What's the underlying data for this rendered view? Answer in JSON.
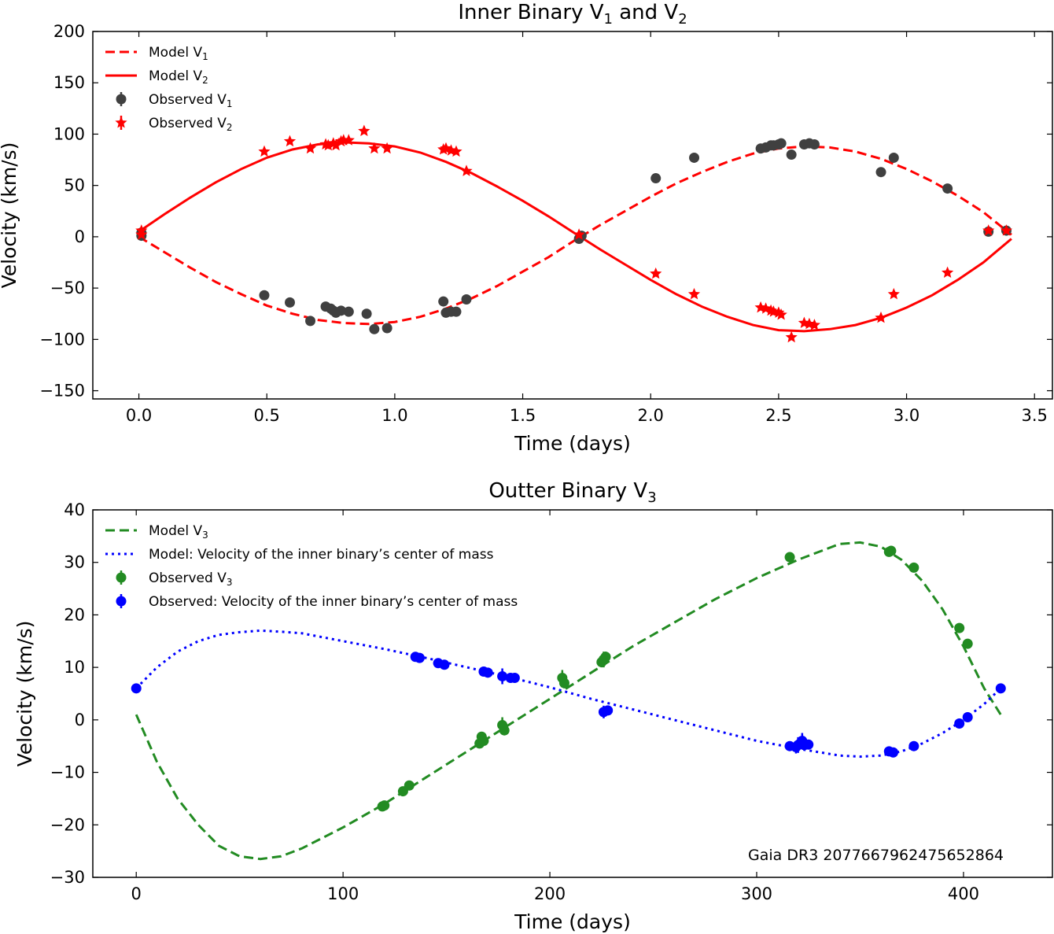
{
  "chart_data": [
    {
      "type": "line",
      "title": "Inner Binary V₁ and V₂",
      "title_parts": [
        "Inner Binary V",
        "1",
        " and V",
        "2"
      ],
      "xlabel": "Time (days)",
      "ylabel": "Velocity (km/s)",
      "xlim": [
        -0.18,
        3.57
      ],
      "ylim": [
        -158,
        200
      ],
      "xticks": [
        0.0,
        0.5,
        1.0,
        1.5,
        2.0,
        2.5,
        3.0,
        3.5
      ],
      "xtick_labels": [
        "0.0",
        "0.5",
        "1.0",
        "1.5",
        "2.0",
        "2.5",
        "3.0",
        "3.5"
      ],
      "yticks": [
        -150,
        -100,
        -50,
        0,
        50,
        100,
        150,
        200
      ],
      "ytick_labels": [
        "−150",
        "−100",
        "−50",
        "0",
        "50",
        "100",
        "150",
        "200"
      ],
      "legend_position": "top-left",
      "legend": [
        {
          "label": "Model V",
          "sub": "1",
          "style": "dashed-line",
          "color": "#ff0000"
        },
        {
          "label": "Model V",
          "sub": "2",
          "style": "solid-line",
          "color": "#ff0000"
        },
        {
          "label": "Observed V",
          "sub": "1",
          "style": "circle",
          "color": "#404040"
        },
        {
          "label": "Observed V",
          "sub": "2",
          "style": "star",
          "color": "#ff0000"
        }
      ],
      "series": [
        {
          "name": "Model V1",
          "style": "dashed",
          "color": "#ff0000",
          "x": [
            0.0,
            0.1,
            0.2,
            0.3,
            0.4,
            0.5,
            0.6,
            0.7,
            0.8,
            0.9,
            1.0,
            1.1,
            1.2,
            1.3,
            1.4,
            1.5,
            1.6,
            1.7,
            1.8,
            1.9,
            2.0,
            2.1,
            2.2,
            2.3,
            2.4,
            2.5,
            2.6,
            2.7,
            2.8,
            2.9,
            3.0,
            3.1,
            3.2,
            3.3,
            3.41
          ],
          "y": [
            0,
            -15,
            -30,
            -44,
            -56,
            -67,
            -75,
            -81,
            -84,
            -85,
            -83,
            -78,
            -70,
            -60,
            -48,
            -34,
            -20,
            -4,
            11,
            25,
            39,
            52,
            63,
            73,
            81,
            86,
            88,
            87,
            83,
            76,
            66,
            54,
            40,
            24,
            2
          ]
        },
        {
          "name": "Model V2",
          "style": "solid",
          "color": "#ff0000",
          "x": [
            0.0,
            0.1,
            0.2,
            0.3,
            0.4,
            0.5,
            0.6,
            0.7,
            0.8,
            0.9,
            1.0,
            1.1,
            1.2,
            1.3,
            1.4,
            1.5,
            1.6,
            1.7,
            1.8,
            1.9,
            2.0,
            2.1,
            2.2,
            2.3,
            2.4,
            2.5,
            2.6,
            2.7,
            2.8,
            2.9,
            3.0,
            3.1,
            3.2,
            3.3,
            3.41
          ],
          "y": [
            5,
            22,
            38,
            53,
            66,
            77,
            85,
            90,
            92,
            91,
            88,
            82,
            73,
            62,
            49,
            35,
            20,
            4,
            -12,
            -27,
            -42,
            -56,
            -68,
            -78,
            -86,
            -91,
            -92,
            -90,
            -86,
            -79,
            -69,
            -57,
            -42,
            -25,
            -2
          ]
        },
        {
          "name": "Observed V1",
          "style": "circle",
          "color": "#404040",
          "x": [
            0.01,
            0.01,
            0.49,
            0.59,
            0.67,
            0.73,
            0.75,
            0.76,
            0.77,
            0.79,
            0.82,
            0.89,
            0.92,
            0.97,
            1.19,
            1.2,
            1.22,
            1.24,
            1.28,
            1.72,
            1.73,
            2.02,
            2.17,
            2.43,
            2.45,
            2.47,
            2.48,
            2.5,
            2.51,
            2.55,
            2.6,
            2.62,
            2.64,
            2.9,
            2.95,
            3.16,
            3.32,
            3.39
          ],
          "y": [
            4,
            1,
            -57,
            -64,
            -82,
            -68,
            -70,
            -72,
            -74,
            -72,
            -73,
            -75,
            -90,
            -89,
            -63,
            -74,
            -73,
            -73,
            -61,
            -2,
            1,
            57,
            77,
            86,
            87,
            89,
            89,
            90,
            91,
            80,
            90,
            91,
            90,
            63,
            77,
            47,
            5,
            6
          ]
        },
        {
          "name": "Observed V2",
          "style": "star",
          "color": "#ff0000",
          "x": [
            0.01,
            0.01,
            0.49,
            0.59,
            0.67,
            0.73,
            0.74,
            0.76,
            0.77,
            0.79,
            0.8,
            0.82,
            0.88,
            0.92,
            0.97,
            1.19,
            1.2,
            1.22,
            1.24,
            1.28,
            1.72,
            2.02,
            2.17,
            2.43,
            2.45,
            2.47,
            2.48,
            2.5,
            2.51,
            2.55,
            2.6,
            2.62,
            2.64,
            2.9,
            2.95,
            3.16,
            3.32,
            3.39
          ],
          "y": [
            6,
            2,
            83,
            93,
            86,
            90,
            89,
            91,
            89,
            93,
            94,
            94,
            103,
            86,
            86,
            85,
            86,
            84,
            83,
            64,
            2,
            -36,
            -56,
            -69,
            -70,
            -72,
            -73,
            -74,
            -76,
            -98,
            -84,
            -85,
            -86,
            -79,
            -56,
            -35,
            6,
            6
          ]
        }
      ]
    },
    {
      "type": "line",
      "title": "Outter Binary V₃",
      "title_parts": [
        "Outter Binary V",
        "3"
      ],
      "xlabel": "Time (days)",
      "ylabel": "Velocity (km/s)",
      "xlim": [
        -21,
        443
      ],
      "ylim": [
        -30,
        40
      ],
      "xticks": [
        0,
        100,
        200,
        300,
        400
      ],
      "xtick_labels": [
        "0",
        "100",
        "200",
        "300",
        "400"
      ],
      "yticks": [
        -30,
        -20,
        -10,
        0,
        10,
        20,
        30,
        40
      ],
      "ytick_labels": [
        "−30",
        "−20",
        "−10",
        "0",
        "10",
        "20",
        "30",
        "40"
      ],
      "legend_position": "top-left",
      "annotation": "Gaia DR3 2077667962475652864",
      "legend": [
        {
          "label": "Model V",
          "sub": "3",
          "style": "dashed-line",
          "color": "#228b22"
        },
        {
          "label": "Model: Velocity of the inner binary’s center of mass",
          "sub": "",
          "style": "dotted-line",
          "color": "#0000ff"
        },
        {
          "label": "Observed V",
          "sub": "3",
          "style": "errorbar-circle",
          "color": "#228b22"
        },
        {
          "label": "Observed: Velocity of the inner binary’s center of mass",
          "sub": "",
          "style": "errorbar-circle",
          "color": "#0000ff"
        }
      ],
      "series": [
        {
          "name": "Model V3",
          "style": "dashed",
          "color": "#228b22",
          "x": [
            0,
            10,
            20,
            30,
            40,
            50,
            60,
            70,
            80,
            100,
            120,
            140,
            160,
            180,
            200,
            220,
            240,
            260,
            280,
            300,
            320,
            340,
            350,
            360,
            370,
            380,
            390,
            400,
            410,
            418
          ],
          "y": [
            1,
            -8,
            -15,
            -20,
            -24,
            -26,
            -26.5,
            -26,
            -24.5,
            -20.5,
            -16,
            -11,
            -6,
            -1,
            4,
            9,
            14,
            18.5,
            23,
            27,
            30.5,
            33.5,
            33.8,
            33,
            30.5,
            26.5,
            21,
            14,
            6,
            1
          ]
        },
        {
          "name": "Model: Velocity of the inner binary's center of mass",
          "style": "dotted",
          "color": "#0000ff",
          "x": [
            0,
            10,
            20,
            30,
            40,
            50,
            60,
            70,
            80,
            100,
            120,
            140,
            160,
            180,
            200,
            220,
            240,
            260,
            280,
            300,
            320,
            340,
            350,
            360,
            370,
            380,
            390,
            400,
            410,
            418
          ],
          "y": [
            6,
            10,
            13,
            15,
            16.2,
            16.7,
            17,
            16.8,
            16.5,
            15,
            13.5,
            11.8,
            10,
            8.2,
            6.2,
            4,
            2,
            0,
            -2,
            -4,
            -5.5,
            -6.8,
            -7,
            -6.8,
            -6,
            -4.5,
            -2.5,
            0,
            3,
            6
          ]
        },
        {
          "name": "Observed V3",
          "style": "errorbar-circle",
          "color": "#228b22",
          "x": [
            119,
            120,
            129,
            132,
            166,
            167,
            168,
            177,
            178,
            206,
            207,
            225,
            226,
            227,
            316,
            364,
            365,
            376,
            398,
            402
          ],
          "y": [
            -16.5,
            -16.3,
            -13.6,
            -12.5,
            -4.5,
            -3.2,
            -4,
            -1,
            -2,
            8,
            7,
            11,
            11.5,
            12,
            31,
            32,
            32.2,
            29,
            17.5,
            14.5
          ],
          "yerr": [
            0.4,
            0.4,
            0.4,
            0.4,
            0.5,
            0.5,
            0.5,
            1.5,
            0.6,
            1.5,
            1.0,
            1.0,
            1.5,
            1.0,
            0.4,
            0.4,
            0.4,
            0.4,
            0.4,
            0.4
          ]
        },
        {
          "name": "Observed: Velocity of the inner binary's center of mass",
          "style": "errorbar-circle",
          "color": "#0000ff",
          "x": [
            0,
            135,
            137,
            146,
            149,
            168,
            170,
            177,
            181,
            183,
            226,
            228,
            316,
            319,
            320,
            321,
            322,
            323,
            325,
            364,
            366,
            376,
            398,
            402,
            418
          ],
          "y": [
            6,
            12,
            11.8,
            10.8,
            10.5,
            9.2,
            9,
            8.3,
            8,
            8,
            1.5,
            1.8,
            -5,
            -5.2,
            -4.8,
            -4.5,
            -4,
            -4.8,
            -4.7,
            -6,
            -6.2,
            -5,
            -0.7,
            0.5,
            6
          ],
          "yerr": [
            0.4,
            0.4,
            0.4,
            0.4,
            0.4,
            0.8,
            0.5,
            1.5,
            0.5,
            0.5,
            1.2,
            0.5,
            0.5,
            1.2,
            1.5,
            1.0,
            1.5,
            1.0,
            0.5,
            0.4,
            0.4,
            0.4,
            0.4,
            0.4,
            0.4
          ]
        }
      ]
    }
  ]
}
